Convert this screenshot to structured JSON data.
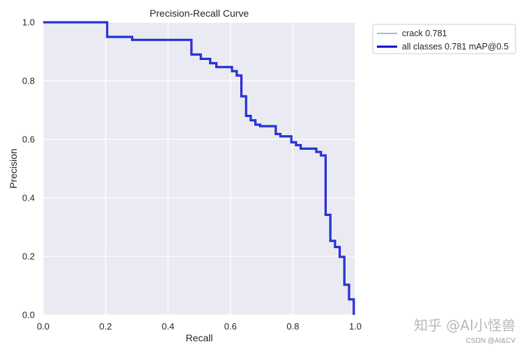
{
  "chart_data": {
    "type": "line",
    "title": "Precision-Recall Curve",
    "xlabel": "Recall",
    "ylabel": "Precision",
    "xlim": [
      0.0,
      1.0
    ],
    "ylim": [
      0.0,
      1.0
    ],
    "xticks": [
      "0.0",
      "0.2",
      "0.4",
      "0.6",
      "0.8",
      "1.0"
    ],
    "yticks": [
      "0.0",
      "0.2",
      "0.4",
      "0.6",
      "0.8",
      "1.0"
    ],
    "grid": true,
    "legend_position": "outside top-right",
    "series": [
      {
        "name": "crack 0.781",
        "color": "#4169e1",
        "style": "thin",
        "points": [
          [
            0.0,
            1.0
          ],
          [
            0.205,
            1.0
          ],
          [
            0.205,
            0.95
          ],
          [
            0.285,
            0.95
          ],
          [
            0.285,
            0.94
          ],
          [
            0.475,
            0.94
          ],
          [
            0.475,
            0.89
          ],
          [
            0.505,
            0.89
          ],
          [
            0.505,
            0.875
          ],
          [
            0.535,
            0.875
          ],
          [
            0.535,
            0.86
          ],
          [
            0.555,
            0.86
          ],
          [
            0.555,
            0.847
          ],
          [
            0.605,
            0.847
          ],
          [
            0.605,
            0.833
          ],
          [
            0.62,
            0.833
          ],
          [
            0.62,
            0.818
          ],
          [
            0.635,
            0.818
          ],
          [
            0.635,
            0.747
          ],
          [
            0.65,
            0.747
          ],
          [
            0.65,
            0.68
          ],
          [
            0.665,
            0.68
          ],
          [
            0.665,
            0.665
          ],
          [
            0.68,
            0.665
          ],
          [
            0.68,
            0.65
          ],
          [
            0.695,
            0.65
          ],
          [
            0.695,
            0.645
          ],
          [
            0.745,
            0.645
          ],
          [
            0.745,
            0.618
          ],
          [
            0.76,
            0.618
          ],
          [
            0.76,
            0.61
          ],
          [
            0.795,
            0.61
          ],
          [
            0.795,
            0.59
          ],
          [
            0.81,
            0.59
          ],
          [
            0.81,
            0.58
          ],
          [
            0.825,
            0.58
          ],
          [
            0.825,
            0.568
          ],
          [
            0.875,
            0.568
          ],
          [
            0.875,
            0.557
          ],
          [
            0.89,
            0.557
          ],
          [
            0.89,
            0.545
          ],
          [
            0.905,
            0.545
          ],
          [
            0.905,
            0.342
          ],
          [
            0.92,
            0.342
          ],
          [
            0.92,
            0.253
          ],
          [
            0.935,
            0.253
          ],
          [
            0.935,
            0.232
          ],
          [
            0.95,
            0.232
          ],
          [
            0.95,
            0.198
          ],
          [
            0.965,
            0.198
          ],
          [
            0.965,
            0.103
          ],
          [
            0.98,
            0.103
          ],
          [
            0.98,
            0.053
          ],
          [
            0.995,
            0.053
          ],
          [
            0.995,
            0.0
          ]
        ]
      },
      {
        "name": "all classes 0.781 mAP@0.5",
        "color": "#0000cd",
        "style": "thick",
        "points_ref": "same as crack"
      }
    ]
  },
  "watermark": {
    "main": "知乎 @AI小怪兽",
    "sub": "CSDN @AI&CV"
  }
}
